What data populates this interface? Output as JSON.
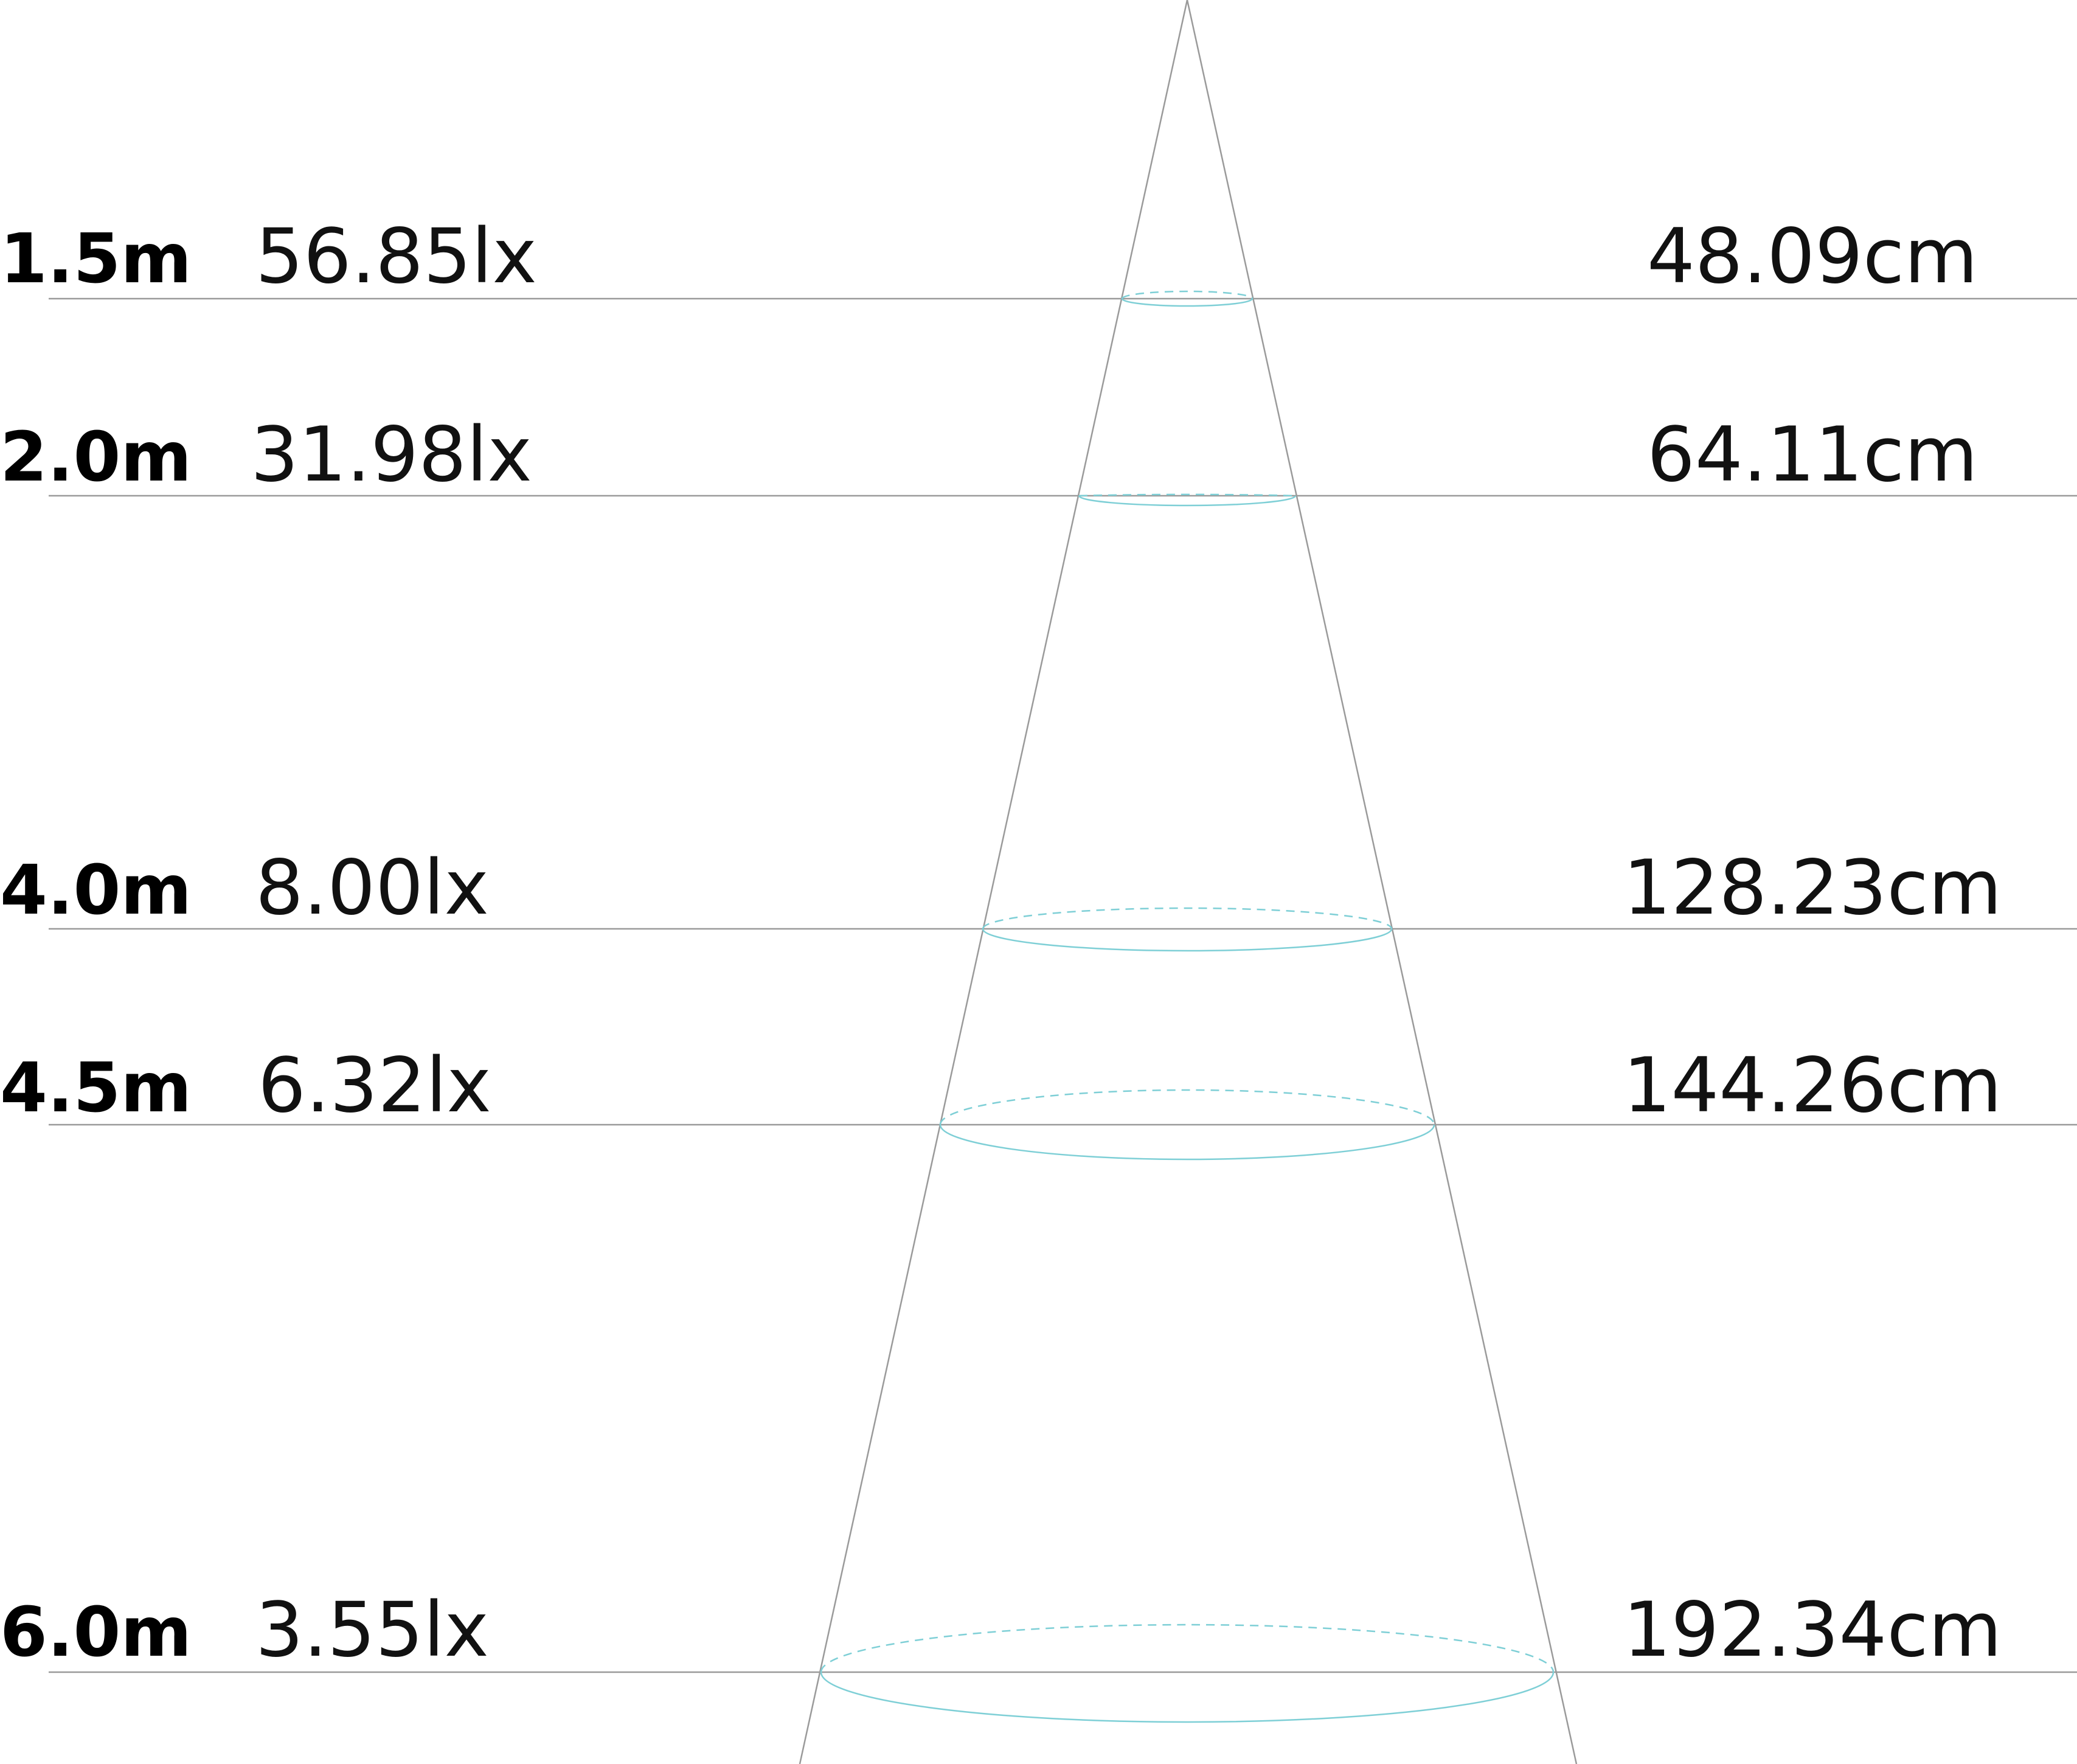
{
  "colors": {
    "line": "#9a9a9a",
    "ellipse": "#7ecfd6",
    "text": "#111111"
  },
  "rows": [
    {
      "distance": "1.5m",
      "illuminance": "56.85lx",
      "diameter": "48.09cm"
    },
    {
      "distance": "2.0m",
      "illuminance": "31.98lx",
      "diameter": "64.11cm"
    },
    {
      "distance": "4.0m",
      "illuminance": "8.00lx",
      "diameter": "128.23cm"
    },
    {
      "distance": "4.5m",
      "illuminance": "6.32lx",
      "diameter": "144.26cm"
    },
    {
      "distance": "6.0m",
      "illuminance": "3.55lx",
      "diameter": "192.34cm"
    }
  ]
}
